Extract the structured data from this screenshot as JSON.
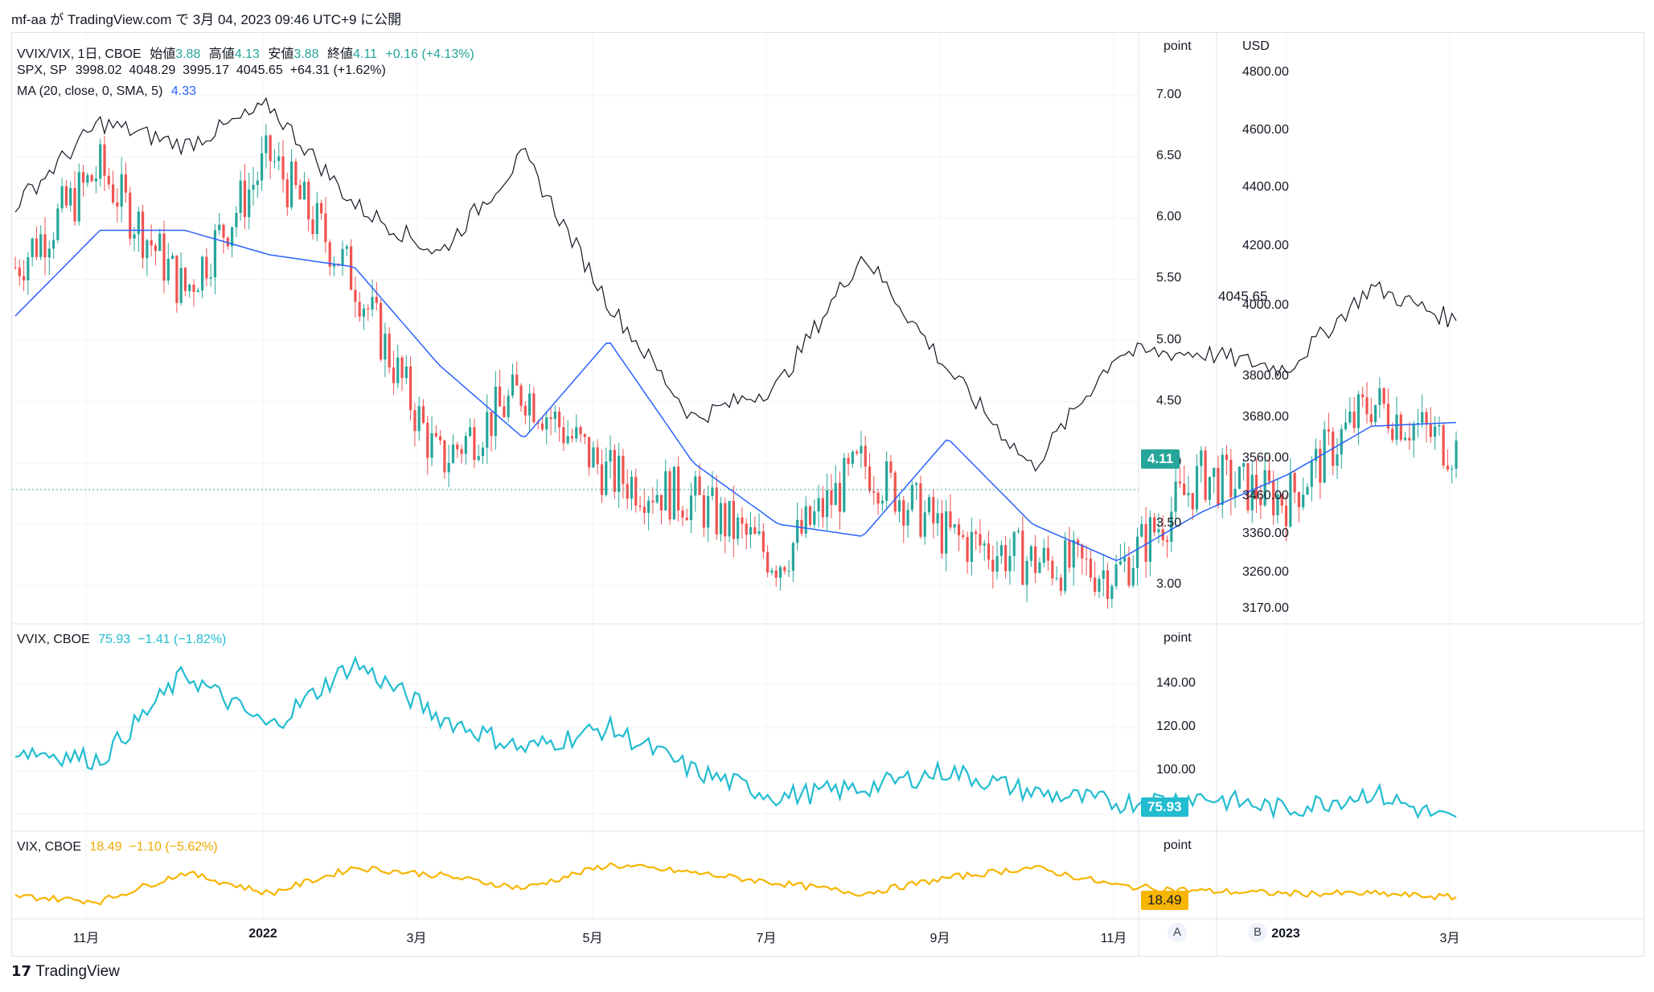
{
  "header": {
    "text": "mf-aa が TradingView.com で 3月 04, 2023 09:46 UTC+9 に公開"
  },
  "footer": {
    "brand": "TradingView"
  },
  "legend": {
    "main": {
      "symbol": "VVIX/VIX, 1日, CBOE",
      "o_label": "始値",
      "o": "3.88",
      "h_label": "高値",
      "h": "4.13",
      "l_label": "安値",
      "l": "3.88",
      "c_label": "終値",
      "c": "4.11",
      "chg": "+0.16 (+4.13%)"
    },
    "spx": {
      "symbol": "SPX, SP",
      "values": "3998.02  4048.29  3995.17  4045.65  +64.31 (+1.62%)"
    },
    "ma": {
      "label": "MA (20, close, 0, SMA, 5)",
      "value": "4.33"
    },
    "vvix": {
      "symbol": "VVIX, CBOE",
      "values": "75.93  −1.41 (−1.82%)"
    },
    "vix": {
      "symbol": "VIX, CBOE",
      "values": "18.49  −1.10 (−5.62%)"
    }
  },
  "axes": {
    "point_label": "point",
    "usd_label": "USD",
    "ratio_ticks": [
      "7.00",
      "6.50",
      "6.00",
      "5.50",
      "5.00",
      "4.50",
      "4.00",
      "3.50",
      "3.00"
    ],
    "usd_ticks": [
      "4800.00",
      "4600.00",
      "4400.00",
      "4200.00",
      "4000.00",
      "3800.00",
      "3680.00",
      "3560.00",
      "3460.00",
      "3360.00",
      "3260.00",
      "3170.00"
    ],
    "vvix_ticks": [
      "140.00",
      "120.00",
      "100.00",
      "80.00"
    ],
    "x_labels": [
      "11月",
      "2022",
      "3月",
      "5月",
      "7月",
      "9月",
      "11月",
      "2023",
      "3月"
    ],
    "buttons": [
      "A",
      "B"
    ]
  },
  "tags": {
    "ratio_last": "4.11",
    "spx_last": "4045.65",
    "vvix_last": "75.93",
    "vix_last": "18.49"
  },
  "colors": {
    "up": "#26a69a",
    "down": "#ef5350",
    "ma": "#2962ff",
    "vvix": "#22bcd0",
    "vix": "#f7b500",
    "spx": "#131722"
  },
  "chart_data": [
    {
      "type": "line",
      "title": "VVIX/VIX, 1日, CBOE",
      "ylim": [
        2.85,
        7.4
      ],
      "x": [
        "2021-10",
        "2021-11",
        "2021-12",
        "2022-01",
        "2022-02",
        "2022-03",
        "2022-04",
        "2022-05",
        "2022-06",
        "2022-07",
        "2022-08",
        "2022-09",
        "2022-10",
        "2022-11",
        "2022-12",
        "2023-01",
        "2023-02",
        "2023-03"
      ],
      "series": [
        {
          "name": "VVIX/VIX",
          "values": [
            5.6,
            6.4,
            5.4,
            6.5,
            5.5,
            4.0,
            4.6,
            3.9,
            3.7,
            3.2,
            4.0,
            3.4,
            3.2,
            3.1,
            3.9,
            3.7,
            4.5,
            4.11
          ]
        },
        {
          "name": "MA (20, close, 0, SMA, 5)",
          "values": [
            5.2,
            5.9,
            5.9,
            5.7,
            5.6,
            4.8,
            4.2,
            5.0,
            4.0,
            3.5,
            3.4,
            4.2,
            3.5,
            3.2,
            3.6,
            3.9,
            4.3,
            4.33
          ]
        },
        {
          "name": "SPX, SP",
          "values": [
            4400,
            4650,
            4580,
            4700,
            4400,
            4250,
            4550,
            4100,
            3750,
            3850,
            4250,
            3900,
            3600,
            3950,
            3950,
            3900,
            4150,
            4045.65
          ]
        }
      ]
    },
    {
      "type": "line",
      "title": "VVIX, CBOE",
      "ylim": [
        75,
        155
      ],
      "x": [
        "2021-10",
        "2021-11",
        "2021-12",
        "2022-01",
        "2022-02",
        "2022-03",
        "2022-04",
        "2022-05",
        "2022-06",
        "2022-07",
        "2022-08",
        "2022-09",
        "2022-10",
        "2022-11",
        "2022-12",
        "2023-01",
        "2023-02",
        "2023-03"
      ],
      "series": [
        {
          "name": "VVIX",
          "values": [
            110,
            105,
            145,
            120,
            150,
            125,
            110,
            120,
            100,
            88,
            92,
            100,
            90,
            85,
            88,
            82,
            90,
            75.93
          ]
        }
      ]
    },
    {
      "type": "line",
      "title": "VIX, CBOE",
      "ylim": [
        14,
        38
      ],
      "x": [
        "2021-10",
        "2021-11",
        "2021-12",
        "2022-01",
        "2022-02",
        "2022-03",
        "2022-04",
        "2022-05",
        "2022-06",
        "2022-07",
        "2022-08",
        "2022-09",
        "2022-10",
        "2022-11",
        "2022-12",
        "2023-01",
        "2023-02",
        "2023-03"
      ],
      "series": [
        {
          "name": "VIX",
          "values": [
            19,
            17,
            28,
            20,
            30,
            27,
            22,
            31,
            28,
            24,
            20,
            26,
            30,
            23,
            21,
            20,
            20,
            18.49
          ]
        }
      ]
    }
  ]
}
